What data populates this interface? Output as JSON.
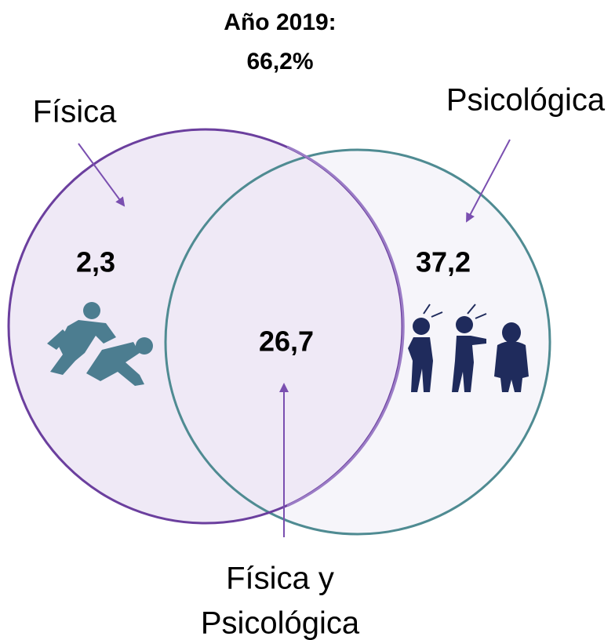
{
  "title": [
    "Año 2019:",
    "66,2%"
  ],
  "sets": [
    {
      "label": "Física",
      "value": "2,3"
    },
    {
      "label": "Psicológica",
      "value": "37,2"
    }
  ],
  "intersection": {
    "label": [
      "Física y",
      "Psicológica"
    ],
    "value": "26,7"
  }
}
